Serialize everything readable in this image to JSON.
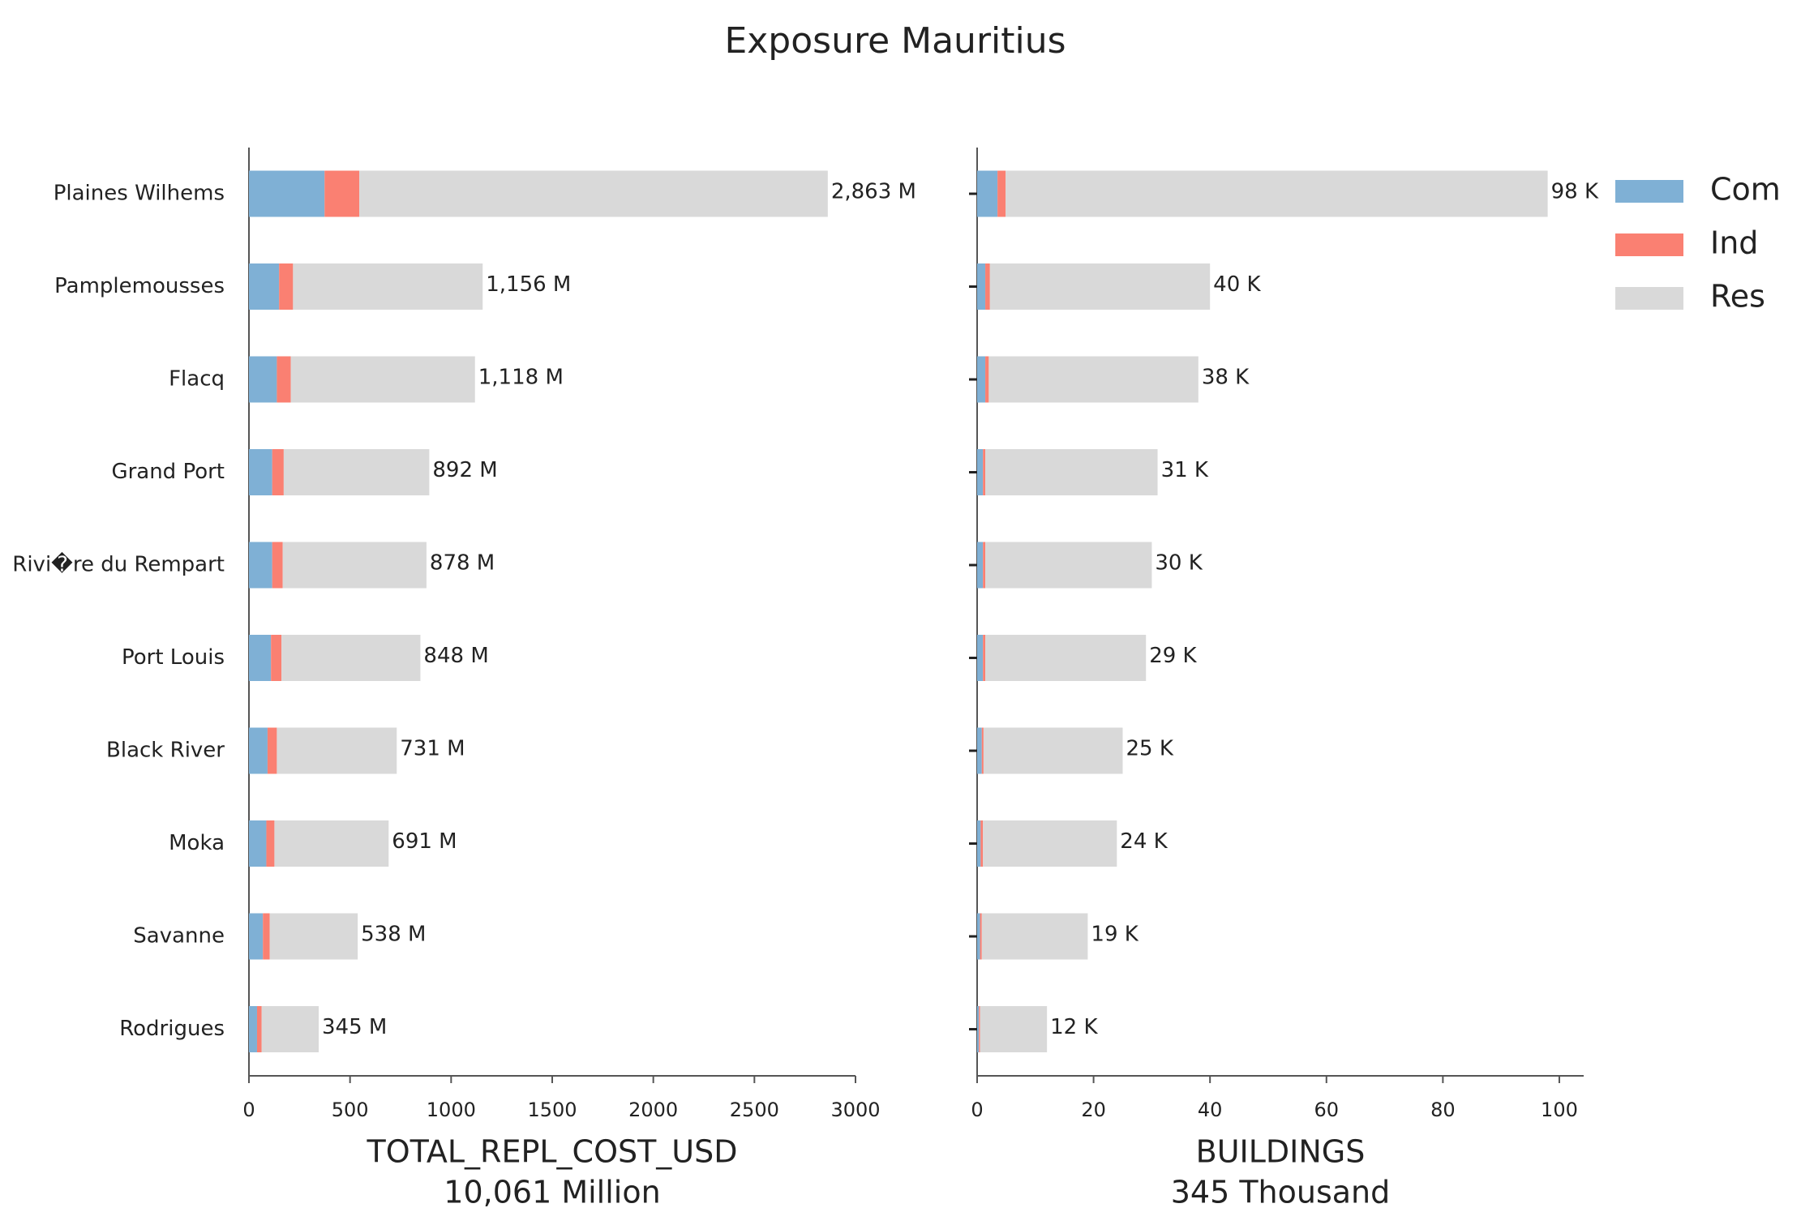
{
  "title": "Exposure Mauritius",
  "chart_data": [
    {
      "type": "bar",
      "orientation": "horizontal",
      "stacked": true,
      "categories": [
        "Plaines Wilhems",
        "Pamplemousses",
        "Flacq",
        "Grand Port",
        "Rivi�re du Rempart",
        "Port Louis",
        "Black River",
        "Moka",
        "Savanne",
        "Rodrigues"
      ],
      "series": [
        {
          "color": "#7fb0d5",
          "values": [
            374,
            149,
            138,
            115,
            115,
            109,
            92,
            86,
            69,
            40
          ]
        },
        {
          "color": "#fa8072",
          "values": [
            172,
            69,
            69,
            57,
            52,
            52,
            46,
            40,
            34,
            23
          ]
        },
        {
          "color": "#d9d9d9",
          "values": [
            2317,
            938,
            911,
            720,
            711,
            687,
            593,
            565,
            435,
            282
          ]
        }
      ],
      "totals": {
        "values": [
          2863,
          1156,
          1118,
          892,
          878,
          848,
          731,
          691,
          538,
          345
        ],
        "value_labels": [
          "2,863 M",
          "1,156 M",
          "1,118 M",
          "892 M",
          "878 M",
          "848 M",
          "731 M",
          "691 M",
          "538 M",
          "345 M"
        ]
      },
      "x_label": "TOTAL_REPL_COST_USD",
      "x_sublabel": "10,061 Million",
      "xlim": [
        0,
        3000
      ],
      "xticks": [
        0,
        500,
        1000,
        1500,
        2000,
        2500,
        3000
      ]
    },
    {
      "type": "bar",
      "orientation": "horizontal",
      "stacked": true,
      "series": [
        {
          "name": "Com",
          "color": "#7fb0d5",
          "values": [
            3.5,
            1.4,
            1.4,
            1.0,
            1.0,
            1.0,
            0.8,
            0.6,
            0.5,
            0.3
          ]
        },
        {
          "name": "Ind",
          "color": "#fa8072",
          "values": [
            1.4,
            0.8,
            0.6,
            0.4,
            0.4,
            0.4,
            0.3,
            0.4,
            0.3,
            0.2
          ]
        },
        {
          "name": "Res",
          "color": "#d9d9d9",
          "values": [
            93.1,
            37.8,
            36,
            29.6,
            28.6,
            27.6,
            23.9,
            23,
            18.2,
            11.5
          ]
        }
      ],
      "totals": {
        "values": [
          98,
          40,
          38,
          31,
          30,
          29,
          25,
          24,
          19,
          12
        ],
        "value_labels": [
          "98 K",
          "40 K",
          "38 K",
          "31 K",
          "30 K",
          "29 K",
          "25 K",
          "24 K",
          "19 K",
          "12 K"
        ]
      },
      "x_label": "BUILDINGS",
      "x_sublabel": "345 Thousand",
      "xlim": [
        0,
        103
      ],
      "xticks": [
        0,
        20,
        40,
        60,
        80,
        100
      ],
      "legend": "outside right"
    }
  ]
}
